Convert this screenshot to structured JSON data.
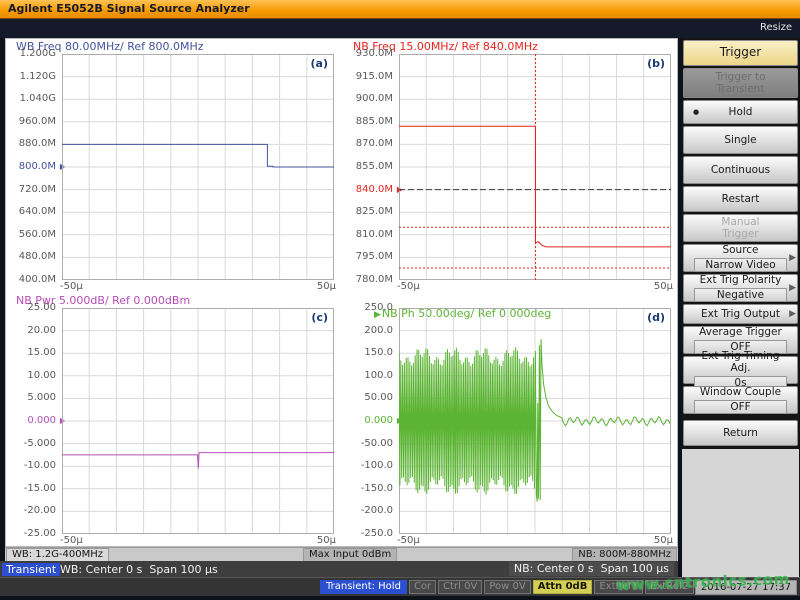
{
  "window": {
    "title": "Agilent E5052B Signal Source Analyzer",
    "resize_label": "Resize"
  },
  "colors": {
    "titlebar_orange": "#f59b00",
    "badge_blue": "#2b4fd0",
    "attn_yellow": "#d3cf56",
    "watermark_green": "#35b54b",
    "trace_blue": "#44549e",
    "trace_red": "#e8251f",
    "trace_magenta": "#b84db8",
    "trace_green": "#5cb434"
  },
  "chart_data": [
    {
      "id": "a",
      "corner": "(a)",
      "type": "line",
      "title": "WB Freq 80.00MHz/ Ref 800.0MHz",
      "color": "#44549e",
      "x_range": [
        -50,
        50
      ],
      "x_tick_labels": [
        "-50µ",
        "50µ"
      ],
      "x_unit": "s",
      "y_range": [
        400,
        1200
      ],
      "y_unit": "MHz",
      "y_ticks": [
        "1.200G",
        "1.120G",
        "1.040G",
        "960.0M",
        "880.0M",
        "800.0M",
        "720.0M",
        "640.0M",
        "560.0M",
        "480.0M",
        "400.0M"
      ],
      "ref": {
        "label": "800.0M",
        "value": 800
      },
      "trace_points": [
        [
          -50,
          880
        ],
        [
          25.5,
          880
        ],
        [
          25.5,
          803
        ],
        [
          27.5,
          803
        ],
        [
          27.5,
          800
        ],
        [
          50,
          800
        ]
      ]
    },
    {
      "id": "b",
      "corner": "(b)",
      "type": "line",
      "title": "NB Freq 15.00MHz/ Ref 840.0MHz",
      "color": "#e8251f",
      "x_range": [
        -50,
        50
      ],
      "x_tick_labels": [
        "-50µ",
        "50µ"
      ],
      "x_unit": "s",
      "y_range": [
        780,
        930
      ],
      "y_unit": "MHz",
      "y_ticks": [
        "930.0M",
        "915.0M",
        "900.0M",
        "885.0M",
        "870.0M",
        "855.0M",
        "840.0M",
        "825.0M",
        "810.0M",
        "795.0M",
        "780.0M"
      ],
      "ref": {
        "label": "840.0M",
        "value": 840
      },
      "ref_lines": [
        {
          "y": 840,
          "color": "#3c3c3c",
          "dash": "6,3"
        },
        {
          "y": 815,
          "color": "#e8251f",
          "dash": "2,2"
        },
        {
          "y": 788,
          "color": "#e8251f",
          "dash": "2,2"
        }
      ],
      "v_lines": [
        {
          "x": 0.2,
          "color": "#e8251f",
          "dash": "2,2"
        }
      ],
      "trace_points": [
        [
          -50,
          882
        ],
        [
          0.2,
          882
        ],
        [
          0.2,
          804.5
        ],
        [
          1.2,
          805.5
        ],
        [
          2.5,
          803
        ],
        [
          4,
          802
        ],
        [
          50,
          802
        ]
      ]
    },
    {
      "id": "c",
      "corner": "(c)",
      "type": "line",
      "title": "NB Pwr 5.000dB/ Ref 0.000dBm",
      "color": "#b84db8",
      "x_range": [
        -50,
        50
      ],
      "x_tick_labels": [
        "-50µ",
        "50µ"
      ],
      "x_unit": "s",
      "y_range": [
        -25,
        25
      ],
      "y_unit": "dBm",
      "y_ticks": [
        "25.00",
        "20.00",
        "15.00",
        "10.00",
        "5.000",
        "0.000",
        "-5.000",
        "-10.00",
        "-15.00",
        "-20.00",
        "-25.00"
      ],
      "ref": {
        "label": "0.000",
        "value": 0
      },
      "trace_points": [
        [
          -50,
          -7.5
        ],
        [
          -0.2,
          -7.5
        ],
        [
          0.1,
          -10.5
        ],
        [
          0.4,
          -7.0
        ],
        [
          50,
          -7.0
        ]
      ]
    },
    {
      "id": "d",
      "corner": "(d)",
      "type": "line",
      "title": "NB Ph 50.00deg/ Ref 0.000deg",
      "color": "#5cb434",
      "marker": "▶",
      "x_range": [
        -50,
        50
      ],
      "x_tick_labels": [
        "-50µ",
        "50µ"
      ],
      "x_unit": "s",
      "y_range": [
        -250,
        250
      ],
      "y_unit": "deg",
      "y_ticks": [
        "250.0",
        "200.0",
        "150.0",
        "100.0",
        "50.00",
        "0.000",
        "-50.00",
        "-100.0",
        "-150.0",
        "-200.0",
        "-250.0"
      ],
      "ref": {
        "label": "0.000",
        "value": 0
      },
      "burst": {
        "x_start": -50,
        "x_end": 0.4,
        "step": 0.33,
        "amp_base": 142,
        "amp_var": 24
      },
      "post_points": [
        [
          0.5,
          -165
        ],
        [
          0.8,
          -178
        ],
        [
          1.0,
          40
        ],
        [
          1.3,
          -172
        ],
        [
          1.6,
          168
        ],
        [
          1.9,
          -175
        ],
        [
          2.2,
          181
        ],
        [
          2.6,
          120
        ],
        [
          3.2,
          80
        ],
        [
          4,
          52
        ],
        [
          5,
          33
        ],
        [
          6.5,
          20
        ],
        [
          8,
          12
        ],
        [
          10,
          7
        ]
      ],
      "noise": {
        "x_start": 10,
        "x_end": 50,
        "amp": 7
      }
    }
  ],
  "sidebar": {
    "items": [
      {
        "label": "Trigger",
        "type": "header"
      },
      {
        "label": "Trigger to Transient",
        "type": "dark-disabled"
      },
      {
        "label": "Hold",
        "selected": true
      },
      {
        "label": "Single"
      },
      {
        "label": "Continuous"
      },
      {
        "label": "Restart"
      },
      {
        "label": "Manual Trigger",
        "type": "text-disabled"
      },
      {
        "label": "Source",
        "value": "Narrow Video",
        "arrow": "▶"
      },
      {
        "label": "Ext Trig Polarity",
        "value": "Negative",
        "arrow": "▶"
      },
      {
        "label": "Ext Trig Output",
        "arrow": "▶"
      },
      {
        "label": "Average Trigger",
        "value": "OFF"
      },
      {
        "label": "Ext Trig Timing Adj.",
        "value": "0s"
      },
      {
        "label": "Window Couple",
        "value": "OFF"
      },
      {
        "label": "Return"
      }
    ]
  },
  "status_bar1": {
    "wb": "WB: 1.2G-400MHz",
    "max_input": "Max Input 0dBm",
    "nb": "NB: 800M-880MHz"
  },
  "status_bar2": {
    "badge": "Transient",
    "wb": "WB: Center 0 s  Span 100 µs",
    "nb": "NB: Center 0 s  Span 100 µs"
  },
  "status_bar3": {
    "badge": "Transient: Hold",
    "segments": [
      {
        "label": "Cor"
      },
      {
        "label": "Ctrl 0V"
      },
      {
        "label": "Pow 0V"
      },
      {
        "label": "Attn 0dB",
        "state": "active"
      },
      {
        "label": "ExtRef1"
      },
      {
        "label": "ExtRef2"
      },
      {
        "label": "Stop"
      },
      {
        "label": "Svc"
      }
    ],
    "datetime": "2016-07-27 17:37"
  },
  "watermark": "www.cntronics.com"
}
